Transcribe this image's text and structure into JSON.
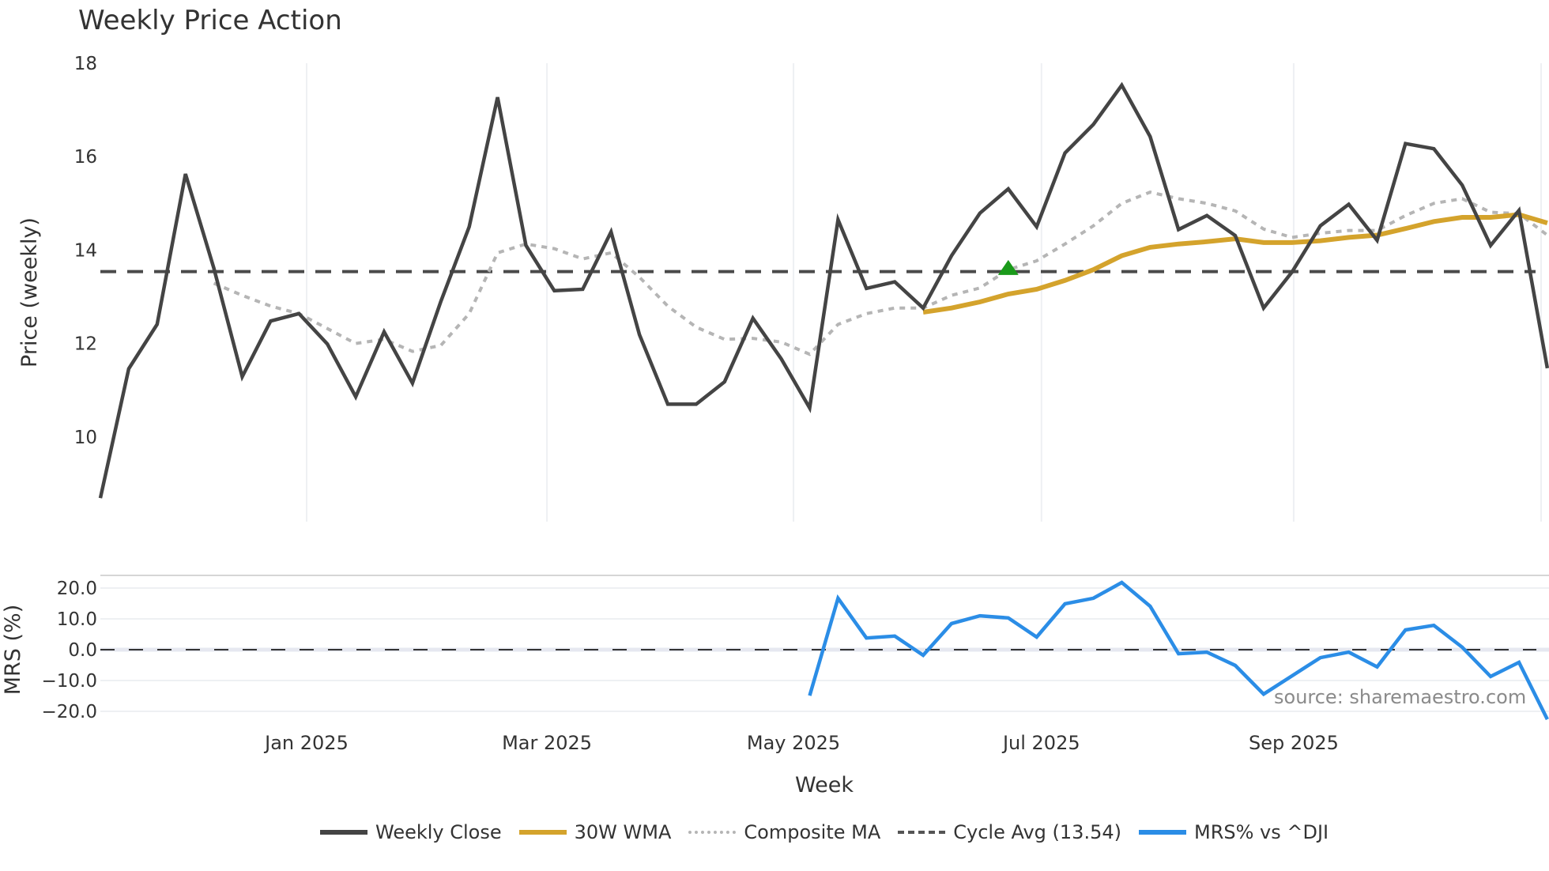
{
  "title": "Weekly Price Action",
  "source_note": "source: sharemaestro.com",
  "legend": {
    "items": [
      {
        "label": "Weekly Close",
        "key": "close"
      },
      {
        "label": "30W WMA",
        "key": "wma"
      },
      {
        "label": "Composite MA",
        "key": "comp"
      },
      {
        "label": "Cycle Avg (13.54)",
        "key": "cycle"
      },
      {
        "label": "MRS% vs ^DJI",
        "key": "mrs"
      }
    ]
  },
  "colors": {
    "close": "#444444",
    "wma": "#d4a32c",
    "composite": "#b5b5b5",
    "cycle": "#4a4a4a",
    "mrs": "#2b8de6",
    "signal": "#1a9a1a",
    "grid": "#eef0f3"
  },
  "chart_data": [
    {
      "type": "line",
      "title": "Weekly Price Action",
      "xlabel": "Week",
      "ylabel": "Price (weekly)",
      "ylim": [
        8.5,
        18.2
      ],
      "yticks": [
        10,
        12,
        14,
        16,
        18
      ],
      "x_tick_labels": [
        {
          "label": "Jan 2025",
          "week": 8.27
        },
        {
          "label": "Mar 2025",
          "week": 16.74
        },
        {
          "label": "May 2025",
          "week": 25.43
        },
        {
          "label": "Jul 2025",
          "week": 34.17
        },
        {
          "label": "Sep 2025",
          "week": 43.06
        },
        {
          "label": "",
          "week": 51.78
        }
      ],
      "x": [
        1,
        2,
        3,
        4,
        5,
        6,
        7,
        8,
        9,
        10,
        11,
        12,
        13,
        14,
        15,
        16,
        17,
        18,
        19,
        20,
        21,
        22,
        23,
        24,
        25,
        26,
        27,
        28,
        29,
        30,
        31,
        32,
        33,
        34,
        35,
        36,
        37,
        38,
        39,
        40,
        41,
        42,
        43,
        44,
        45,
        46,
        47,
        48,
        49,
        50,
        51,
        52
      ],
      "series": [
        {
          "name": "Weekly Close",
          "values": [
            8.69,
            11.46,
            12.41,
            15.63,
            13.61,
            11.29,
            12.48,
            12.64,
            11.99,
            10.86,
            12.25,
            11.15,
            12.9,
            14.5,
            17.27,
            14.1,
            13.13,
            13.16,
            14.39,
            12.19,
            10.7,
            10.7,
            11.18,
            12.54,
            11.67,
            10.62,
            14.65,
            13.18,
            13.32,
            12.76,
            13.88,
            14.79,
            15.31,
            14.5,
            16.08,
            16.69,
            17.53,
            16.43,
            14.44,
            14.74,
            14.31,
            12.76,
            13.53,
            14.52,
            14.98,
            14.21,
            16.28,
            16.17,
            15.39,
            14.1,
            14.85,
            11.47
          ]
        },
        {
          "name": "30W WMA",
          "start_week": 30,
          "values": [
            12.67,
            12.76,
            12.89,
            13.06,
            13.16,
            13.35,
            13.58,
            13.88,
            14.06,
            14.13,
            14.18,
            14.24,
            14.16,
            14.16,
            14.2,
            14.27,
            14.32,
            14.46,
            14.61,
            14.7,
            14.7,
            14.76,
            14.58
          ]
        },
        {
          "name": "Composite MA",
          "start_week": 5,
          "values": [
            13.29,
            13.03,
            12.8,
            12.64,
            12.32,
            12.0,
            12.09,
            11.83,
            11.96,
            12.64,
            13.94,
            14.13,
            14.03,
            13.81,
            13.94,
            13.42,
            12.8,
            12.35,
            12.09,
            12.11,
            12.03,
            11.77,
            12.41,
            12.64,
            12.76,
            12.76,
            13.03,
            13.19,
            13.58,
            13.77,
            14.13,
            14.52,
            15.0,
            15.24,
            15.1,
            15.0,
            14.84,
            14.45,
            14.27,
            14.36,
            14.42,
            14.42,
            14.74,
            15.0,
            15.1,
            14.81,
            14.78,
            14.32
          ]
        },
        {
          "name": "Cycle Avg (13.54)",
          "constant": 13.54
        }
      ],
      "markers": [
        {
          "type": "triangle-up",
          "week": 33,
          "value": 13.62,
          "color": "#1a9a1a"
        }
      ],
      "grid": {
        "x": true,
        "y": false
      }
    },
    {
      "type": "line",
      "ylabel": "MRS (%)",
      "ylim": [
        -24,
        24
      ],
      "yticks": [
        20.0,
        10.0,
        0.0,
        -10.0,
        -20.0
      ],
      "ytick_labels": [
        "20.0",
        "10.0",
        "0.0",
        "−10.0",
        "−20.0"
      ],
      "zero_line": 0.0,
      "series": [
        {
          "name": "MRS% vs ^DJI",
          "start_week": 26,
          "values": [
            -14.9,
            16.7,
            3.8,
            4.4,
            -1.8,
            8.5,
            11.0,
            10.3,
            4.1,
            14.9,
            16.7,
            21.8,
            14.1,
            -1.3,
            -0.8,
            -5.1,
            -14.4,
            -8.5,
            -2.6,
            -0.8,
            -5.6,
            6.4,
            7.9,
            0.8,
            -8.7,
            -4.1,
            -22.6
          ]
        }
      ],
      "grid": {
        "x": false,
        "y": true
      }
    }
  ]
}
